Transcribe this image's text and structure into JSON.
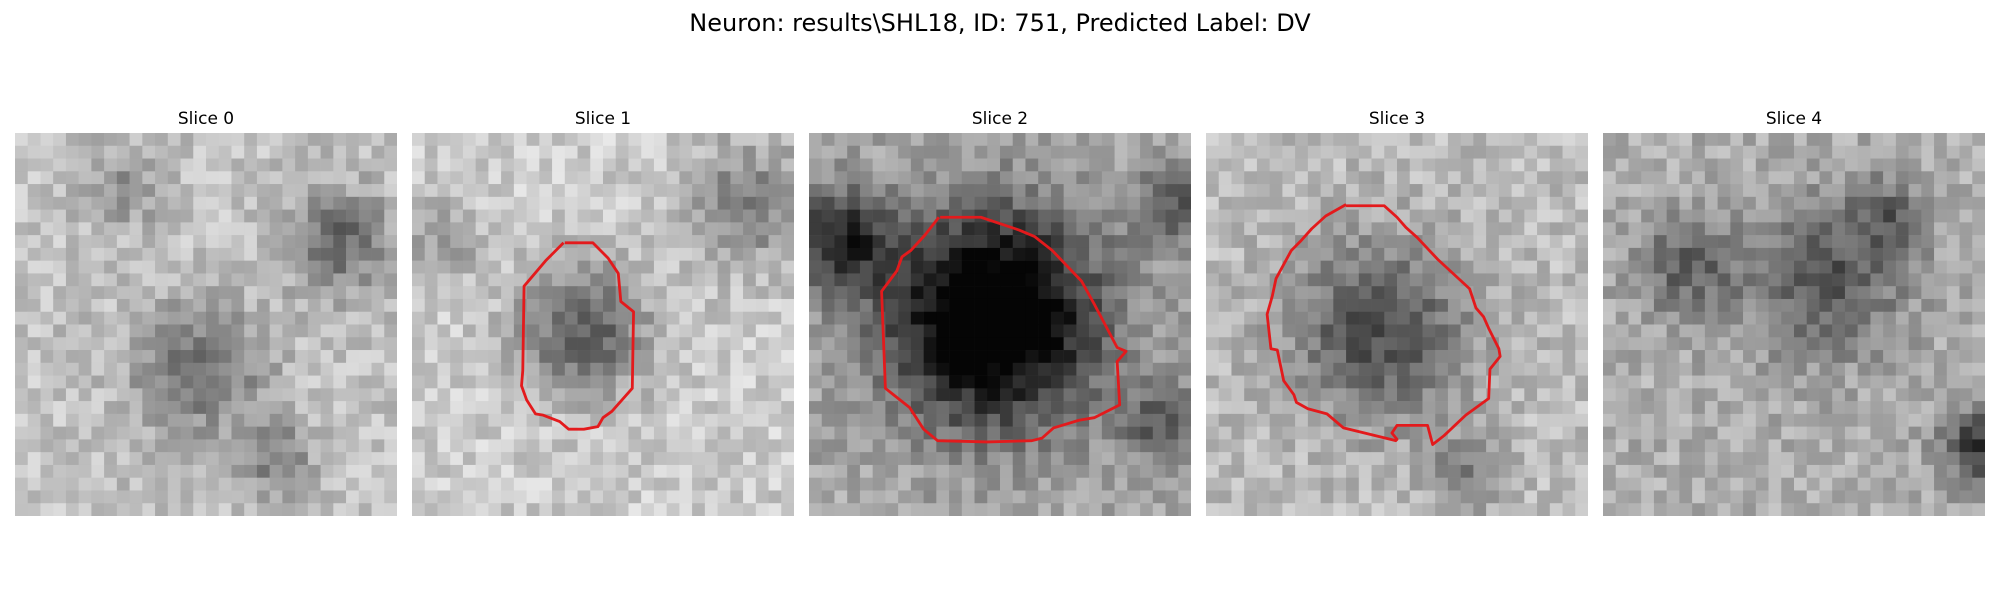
{
  "figure": {
    "title": "Neuron: results\\SHL18, ID: 751, Predicted Label: DV",
    "contour_color": "#e31a1c"
  },
  "panels": [
    {
      "title": "Slice 0",
      "has_contour": false
    },
    {
      "title": "Slice 1",
      "has_contour": true
    },
    {
      "title": "Slice 2",
      "has_contour": true
    },
    {
      "title": "Slice 3",
      "has_contour": true
    },
    {
      "title": "Slice 4",
      "has_contour": false
    }
  ]
}
